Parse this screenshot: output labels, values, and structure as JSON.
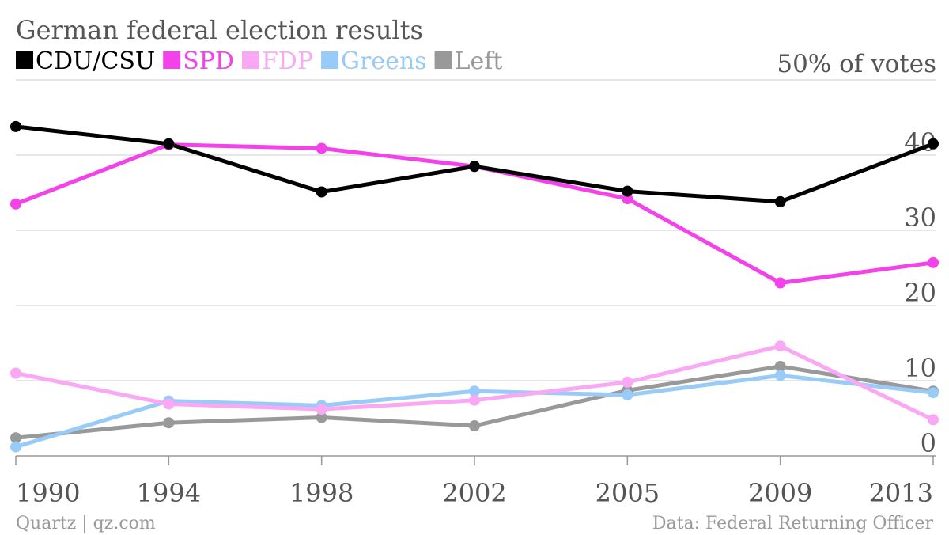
{
  "chart_data": {
    "type": "line",
    "title": "German federal election results",
    "unit_label": "50% of votes",
    "categories": [
      "1990",
      "1994",
      "1998",
      "2002",
      "2005",
      "2009",
      "2013"
    ],
    "y_ticks": [
      0,
      10,
      20,
      30,
      40
    ],
    "ylim": [
      0,
      50
    ],
    "grid": true,
    "legend_position": "top-left",
    "series": [
      {
        "name": "CDU/CSU",
        "color": "#000000",
        "values": [
          43.8,
          41.5,
          35.1,
          38.5,
          35.2,
          33.8,
          41.5
        ]
      },
      {
        "name": "SPD",
        "color": "#f342e9",
        "values": [
          33.5,
          41.4,
          40.9,
          38.5,
          34.2,
          23.0,
          25.7
        ]
      },
      {
        "name": "FDP",
        "color": "#f9a8f4",
        "values": [
          11.0,
          6.9,
          6.2,
          7.4,
          9.8,
          14.6,
          4.8
        ]
      },
      {
        "name": "Greens",
        "color": "#98cbf7",
        "values": [
          1.2,
          7.3,
          6.7,
          8.6,
          8.1,
          10.7,
          8.4
        ]
      },
      {
        "name": "Left",
        "color": "#999999",
        "values": [
          2.4,
          4.4,
          5.1,
          4.0,
          8.7,
          11.9,
          8.6
        ]
      }
    ]
  },
  "footer": {
    "source_left": "Quartz | qz.com",
    "source_right": "Data: Federal Returning Officer"
  }
}
